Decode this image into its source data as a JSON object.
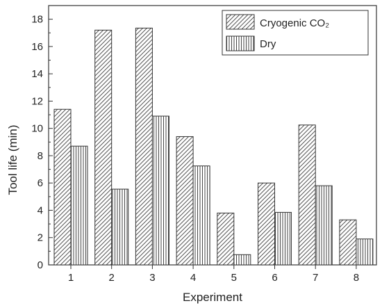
{
  "chart_data": {
    "type": "bar",
    "categories": [
      "1",
      "2",
      "3",
      "4",
      "5",
      "6",
      "7",
      "8"
    ],
    "series": [
      {
        "name": "Cryogenic CO₂",
        "pattern": "diagonal-hatch",
        "values": [
          11.4,
          17.2,
          17.35,
          9.4,
          3.8,
          6.0,
          10.25,
          3.3
        ]
      },
      {
        "name": "Dry",
        "pattern": "vertical-hatch",
        "values": [
          8.7,
          5.55,
          10.9,
          7.25,
          0.75,
          3.85,
          5.8,
          1.9
        ]
      }
    ],
    "xlabel": "Experiment",
    "ylabel": "Tool life (min)",
    "ylim": [
      0,
      19
    ],
    "yticks": [
      0,
      2,
      4,
      6,
      8,
      10,
      12,
      14,
      16,
      18
    ],
    "grid": false,
    "legend_position": "top-right",
    "colors": {
      "stroke": "#333333",
      "background": "#ffffff"
    }
  }
}
